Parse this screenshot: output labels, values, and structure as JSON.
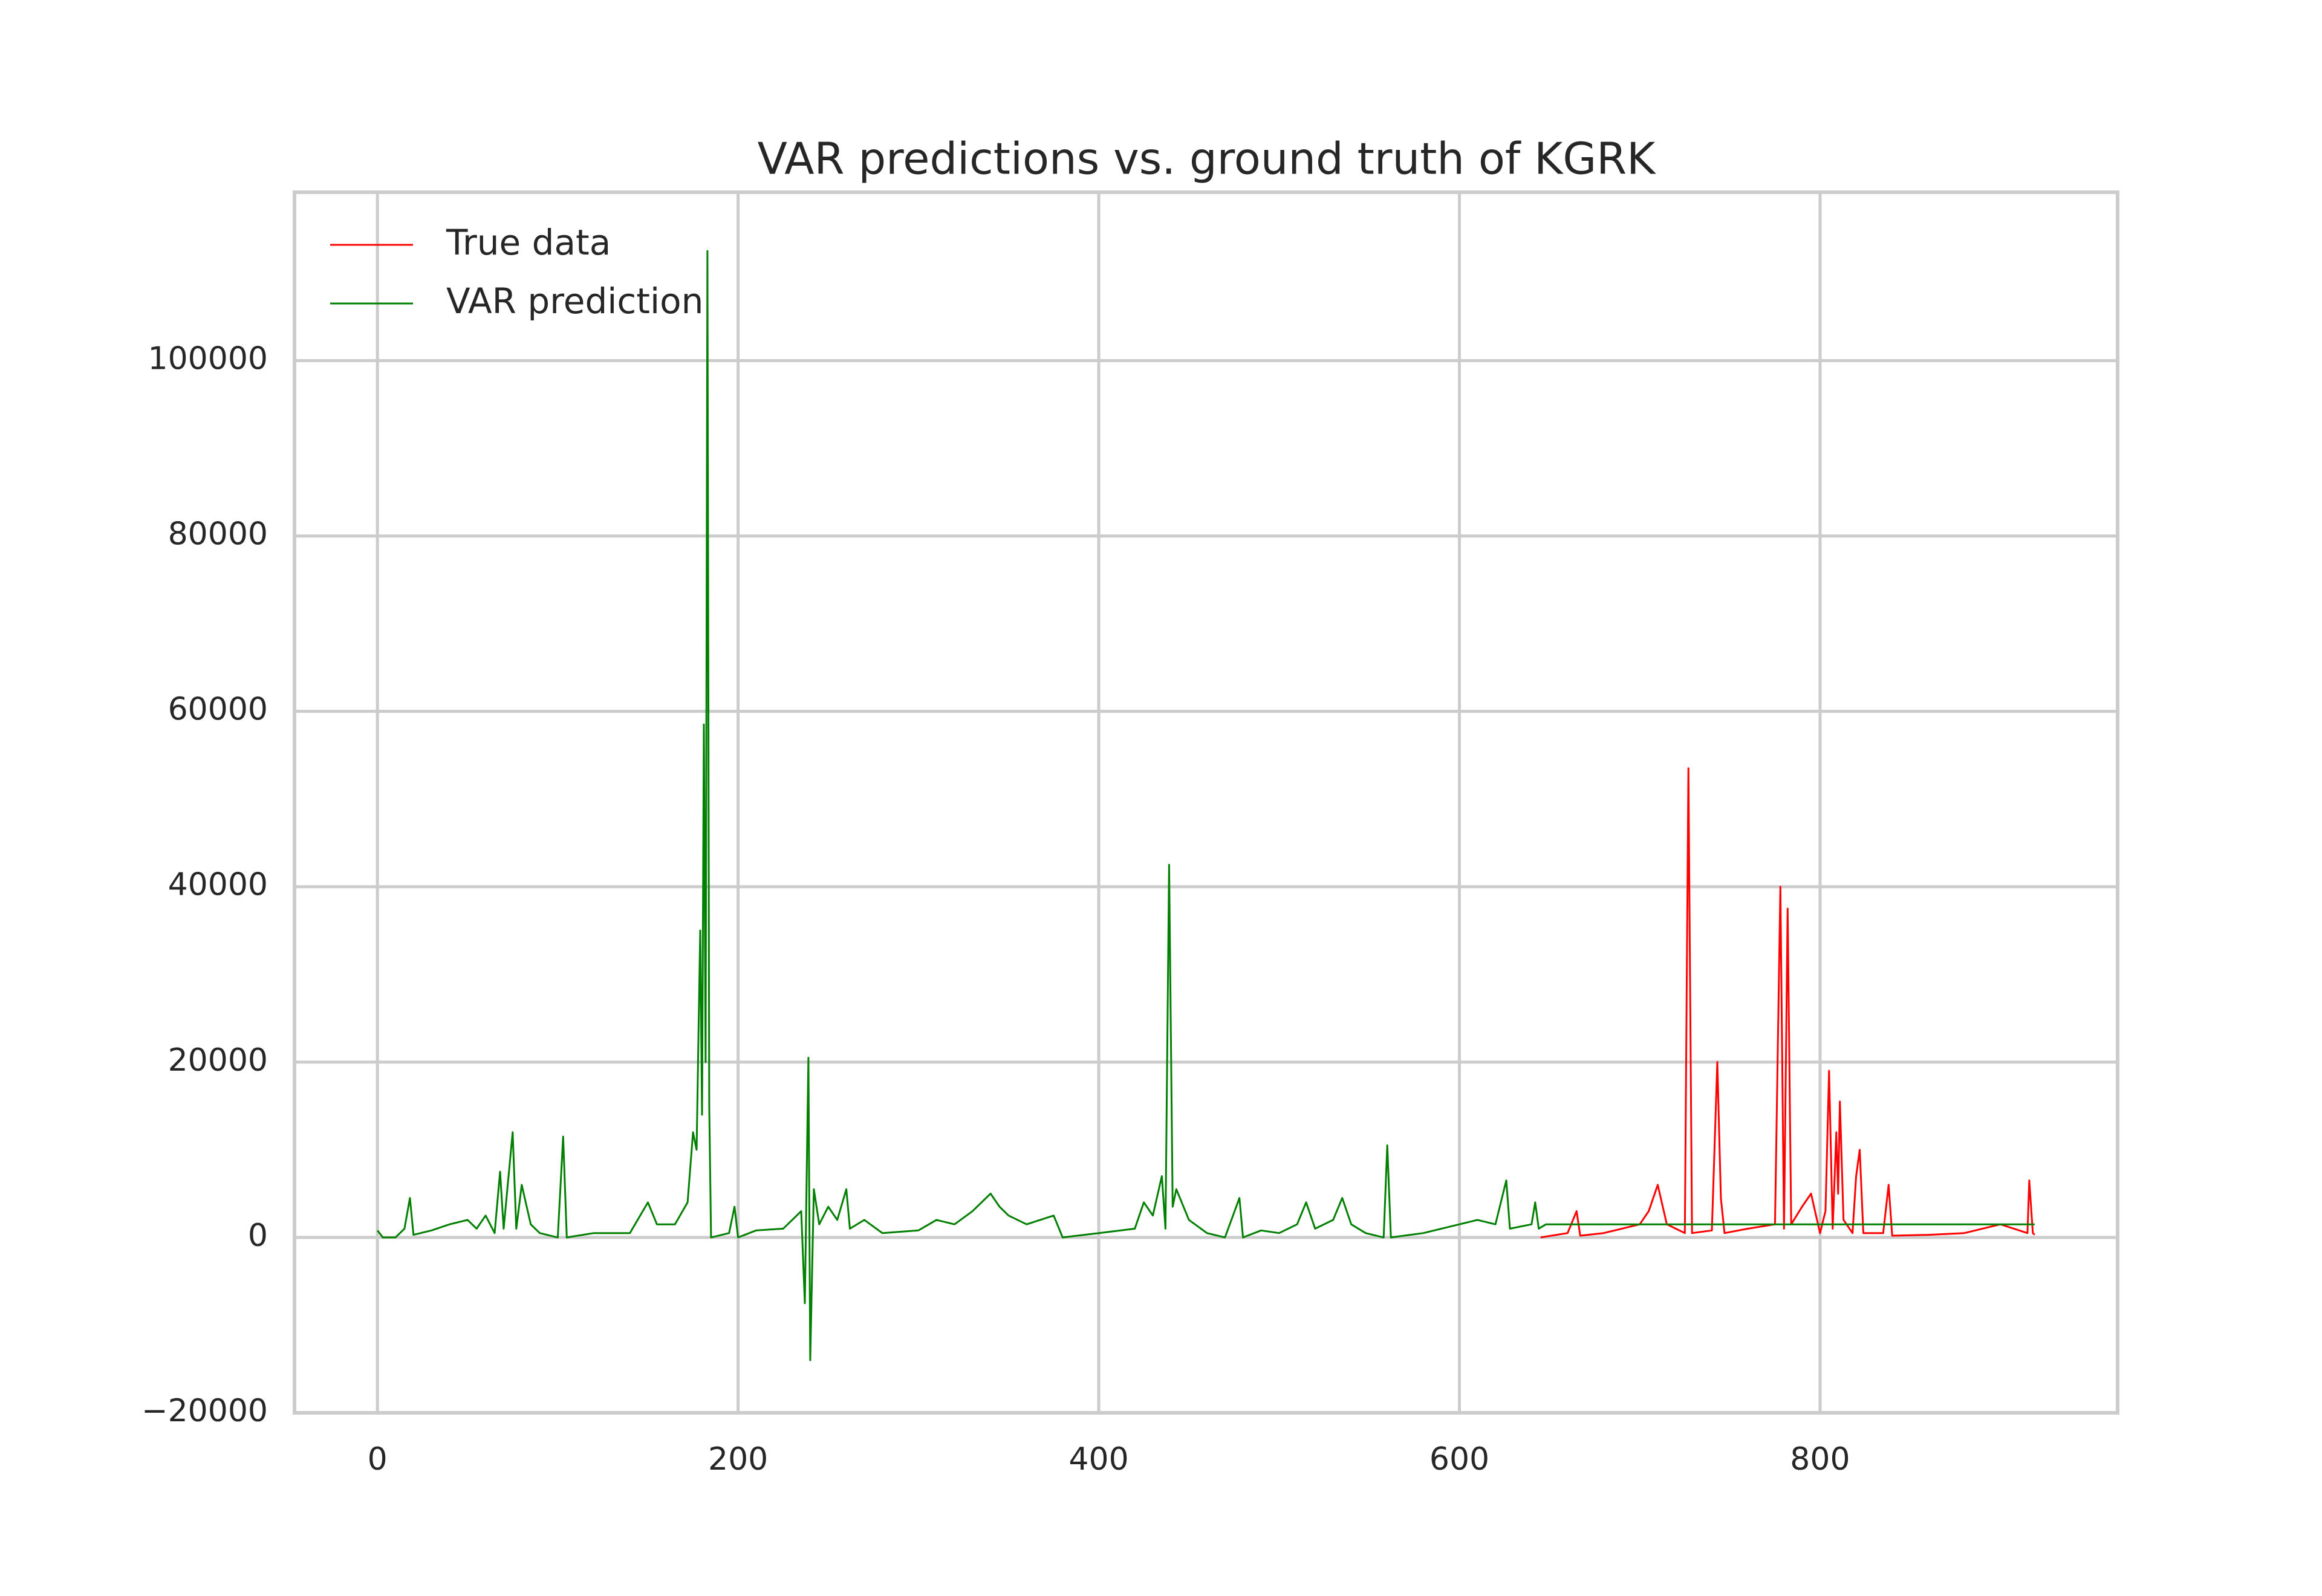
{
  "chart_data": {
    "type": "line",
    "title": "VAR predictions vs. ground truth of KGRK",
    "xlim": [
      -46,
      965
    ],
    "ylim": [
      -20000,
      119200
    ],
    "xticks": [
      0,
      200,
      400,
      600,
      800
    ],
    "yticks": [
      {
        "value": -20000,
        "label": "−20000"
      },
      0,
      20000,
      40000,
      60000,
      80000,
      100000
    ],
    "grid": true,
    "legend": "upper left",
    "series": [
      {
        "name": "True data",
        "color": "#ff0000",
        "x": [
          645,
          660,
          665,
          667,
          680,
          700,
          705,
          710,
          715,
          720,
          725,
          727,
          729,
          740,
          743,
          745,
          747,
          760,
          775,
          778,
          780,
          782,
          784,
          790,
          795,
          800,
          803,
          805,
          807,
          809,
          810,
          811,
          813,
          818,
          820,
          822,
          824,
          835,
          838,
          840,
          860,
          880,
          900,
          915,
          916,
          918,
          919
        ],
        "values": [
          0,
          500,
          3000,
          200,
          500,
          1500,
          3000,
          6000,
          1500,
          1000,
          500,
          53500,
          500,
          800,
          20000,
          4500,
          500,
          1000,
          1500,
          40000,
          1000,
          37500,
          1500,
          3500,
          5000,
          500,
          3000,
          19000,
          1000,
          12000,
          5000,
          15500,
          2000,
          500,
          7000,
          10000,
          500,
          500,
          6000,
          200,
          300,
          500,
          1500,
          500,
          6500,
          500,
          300
        ]
      },
      {
        "name": "VAR prediction",
        "color": "#008000",
        "x": [
          0,
          3,
          10,
          15,
          18,
          20,
          30,
          40,
          50,
          55,
          60,
          65,
          68,
          70,
          75,
          77,
          80,
          85,
          90,
          100,
          103,
          105,
          120,
          140,
          150,
          155,
          165,
          172,
          175,
          177,
          179,
          180,
          181,
          182,
          183,
          184,
          185,
          195,
          198,
          200,
          210,
          225,
          235,
          237,
          239,
          240,
          242,
          245,
          250,
          255,
          260,
          262,
          270,
          280,
          300,
          310,
          320,
          330,
          340,
          345,
          350,
          360,
          375,
          380,
          400,
          420,
          425,
          430,
          435,
          437,
          439,
          441,
          443,
          450,
          460,
          470,
          478,
          480,
          490,
          500,
          510,
          515,
          520,
          530,
          535,
          540,
          548,
          558,
          560,
          562,
          580,
          590,
          600,
          610,
          620,
          626,
          628,
          640,
          642,
          644,
          648,
          919
        ],
        "values": [
          800,
          0,
          0,
          1000,
          4500,
          300,
          800,
          1500,
          2000,
          1000,
          2500,
          500,
          7500,
          1000,
          12000,
          1000,
          6000,
          1500,
          500,
          0,
          11500,
          0,
          500,
          500,
          4000,
          1500,
          1500,
          4000,
          12000,
          10000,
          35000,
          14000,
          58500,
          20000,
          112500,
          15000,
          0,
          500,
          3500,
          0,
          800,
          1000,
          3000,
          -7500,
          20500,
          -14000,
          5500,
          1500,
          3500,
          2000,
          5500,
          1000,
          2000,
          500,
          800,
          2000,
          1500,
          3000,
          5000,
          3500,
          2500,
          1500,
          2500,
          0,
          500,
          1000,
          4000,
          2500,
          7000,
          1000,
          42500,
          3500,
          5500,
          2000,
          500,
          0,
          4500,
          0,
          800,
          500,
          1500,
          4000,
          1000,
          2000,
          4500,
          1500,
          500,
          0,
          10500,
          0,
          500,
          1000,
          1500,
          2000,
          1500,
          6500,
          1000,
          1500,
          4000,
          1000,
          1500,
          1500
        ]
      }
    ]
  }
}
